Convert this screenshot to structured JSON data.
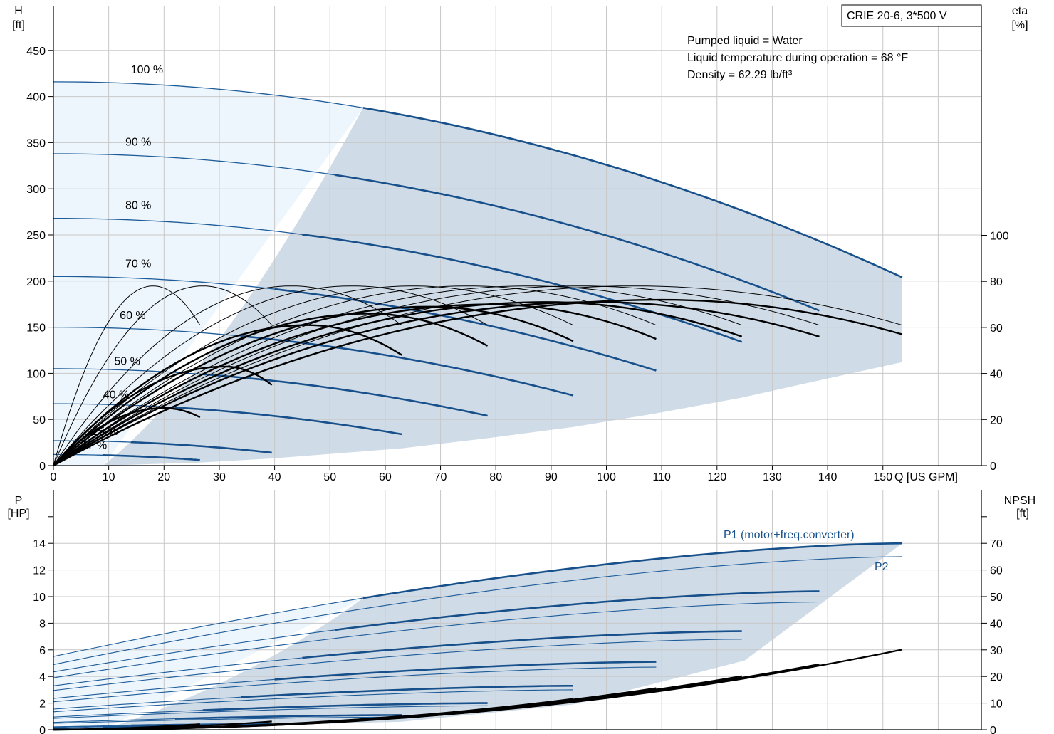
{
  "chart_data": [
    {
      "type": "line",
      "panel": "head-efficiency",
      "title": "CRIE 20-6, 3*500 V",
      "info": [
        "Pumped liquid = Water",
        "Liquid temperature during operation = 68 °F",
        "Density = 62.29 lb/ft³"
      ],
      "ylabel": [
        "H",
        "[ft]"
      ],
      "y2label": [
        "eta",
        "[%]"
      ],
      "xlabel": "Q [US GPM]",
      "xlim": [
        0,
        168
      ],
      "ylim": [
        0,
        500
      ],
      "y2lim": [
        0,
        100
      ],
      "xticks": [
        0,
        10,
        20,
        30,
        40,
        50,
        60,
        70,
        80,
        90,
        100,
        110,
        120,
        130,
        140,
        150
      ],
      "yticks": [
        0,
        50,
        100,
        150,
        200,
        250,
        300,
        350,
        400,
        450
      ],
      "y2ticks": [
        0,
        20,
        40,
        60,
        80,
        100
      ],
      "grid": true,
      "region_colors": {
        "light": "#eef6fd",
        "dark": "#cfdbe7"
      },
      "region_boundary_x": [
        56,
        51,
        40,
        26,
        9
      ],
      "speed_labels": [
        {
          "text": "100 %",
          "q": 14,
          "h": 425
        },
        {
          "text": "90 %",
          "q": 13,
          "h": 347
        },
        {
          "text": "80 %",
          "q": 13,
          "h": 278
        },
        {
          "text": "70 %",
          "q": 13,
          "h": 215
        },
        {
          "text": "60 %",
          "q": 12,
          "h": 159
        },
        {
          "text": "50 %",
          "q": 11,
          "h": 109
        },
        {
          "text": "40 %",
          "q": 9,
          "h": 73
        },
        {
          "text": "25 %",
          "q": 7,
          "h": 33
        },
        {
          "text": "17 %",
          "q": 5,
          "h": 18
        }
      ],
      "head_series": [
        {
          "speed": "100 %",
          "h0": 416,
          "qmax": 153.5,
          "hend": 204,
          "q_start_thick": 56
        },
        {
          "speed": "90 %",
          "h0": 338,
          "qmax": 138.5,
          "hend": 168,
          "q_start_thick": 51
        },
        {
          "speed": "80 %",
          "h0": 268,
          "qmax": 124.5,
          "hend": 134,
          "q_start_thick": 45
        },
        {
          "speed": "70 %",
          "h0": 205,
          "qmax": 109,
          "hend": 103,
          "q_start_thick": 40
        },
        {
          "speed": "60 %",
          "h0": 150,
          "qmax": 94,
          "hend": 76,
          "q_start_thick": 34
        },
        {
          "speed": "50 %",
          "h0": 105,
          "qmax": 78.5,
          "hend": 54,
          "q_start_thick": 27
        },
        {
          "speed": "40 %",
          "h0": 67,
          "qmax": 63,
          "hend": 34,
          "q_start_thick": 22
        },
        {
          "speed": "25 %",
          "h0": 27,
          "qmax": 39.5,
          "hend": 14,
          "q_start_thick": 14
        },
        {
          "speed": "17 %",
          "h0": 12,
          "qmax": 26.5,
          "hend": 6,
          "q_start_thick": 9
        }
      ],
      "eta_curves": [
        {
          "qmax": 26.5,
          "peak_q": 18,
          "peak": 78,
          "end": 61,
          "thick": false
        },
        {
          "qmax": 39.5,
          "peak_q": 27,
          "peak": 78,
          "end": 61,
          "thick": false
        },
        {
          "qmax": 63,
          "peak_q": 43,
          "peak": 78,
          "end": 61,
          "thick": false
        },
        {
          "qmax": 78.5,
          "peak_q": 54,
          "peak": 78,
          "end": 61,
          "thick": false
        },
        {
          "qmax": 94,
          "peak_q": 65,
          "peak": 78,
          "end": 61,
          "thick": false
        },
        {
          "qmax": 109,
          "peak_q": 75,
          "peak": 78,
          "end": 61,
          "thick": false
        },
        {
          "qmax": 124.5,
          "peak_q": 86,
          "peak": 78,
          "end": 61,
          "thick": false
        },
        {
          "qmax": 138.5,
          "peak_q": 95,
          "peak": 78,
          "end": 61,
          "thick": false
        },
        {
          "qmax": 153.5,
          "peak_q": 105,
          "peak": 78,
          "end": 61,
          "thick": false
        },
        {
          "qmax": 26.5,
          "peak_q": 20,
          "peak": 25,
          "end": 21,
          "thick": true
        },
        {
          "qmax": 39.5,
          "peak_q": 31,
          "peak": 43,
          "end": 35,
          "thick": true
        },
        {
          "qmax": 63,
          "peak_q": 46,
          "peak": 61,
          "end": 48,
          "thick": true
        },
        {
          "qmax": 78.5,
          "peak_q": 57,
          "peak": 66,
          "end": 52,
          "thick": true
        },
        {
          "qmax": 94,
          "peak_q": 68,
          "peak": 69,
          "end": 54,
          "thick": true
        },
        {
          "qmax": 109,
          "peak_q": 79,
          "peak": 70,
          "end": 55,
          "thick": true
        },
        {
          "qmax": 124.5,
          "peak_q": 89,
          "peak": 71,
          "end": 56,
          "thick": true
        },
        {
          "qmax": 138.5,
          "peak_q": 98,
          "peak": 71,
          "end": 56,
          "thick": true
        },
        {
          "qmax": 153.5,
          "peak_q": 110,
          "peak": 72,
          "end": 57,
          "thick": true
        }
      ]
    },
    {
      "type": "line",
      "panel": "power-npsh",
      "ylabel": [
        "P",
        "[HP]"
      ],
      "y2label": [
        "NPSH",
        "[ft]"
      ],
      "xlim": [
        0,
        168
      ],
      "ylim": [
        0,
        16
      ],
      "y2lim": [
        0,
        80
      ],
      "yticks": [
        0,
        2,
        4,
        6,
        8,
        10,
        12,
        14
      ],
      "y2ticks": [
        0,
        10,
        20,
        30,
        40,
        50,
        60,
        70
      ],
      "grid": true,
      "region_boundary_x": [
        56,
        51,
        40,
        26,
        9
      ],
      "series_labels": {
        "p1": "P1 (motor+freq.converter)",
        "p2": "P2"
      },
      "power_series": [
        {
          "speed": "100 %",
          "p1_0": 5.5,
          "p1_end": 14.0,
          "p2_0": 4.9,
          "p2_end": 13.0,
          "qmax": 153.5,
          "q_start_thick": 56
        },
        {
          "speed": "90 %",
          "p1_0": 4.35,
          "p1_end": 10.4,
          "p2_0": 3.9,
          "p2_end": 9.6,
          "qmax": 138.5,
          "q_start_thick": 51
        },
        {
          "speed": "80 %",
          "p1_0": 3.3,
          "p1_end": 7.4,
          "p2_0": 2.95,
          "p2_end": 6.8,
          "qmax": 124.5,
          "q_start_thick": 45
        },
        {
          "speed": "70 %",
          "p1_0": 2.35,
          "p1_end": 5.1,
          "p2_0": 2.1,
          "p2_end": 4.7,
          "qmax": 109,
          "q_start_thick": 40
        },
        {
          "speed": "60 %",
          "p1_0": 1.55,
          "p1_end": 3.3,
          "p2_0": 1.35,
          "p2_end": 3.0,
          "qmax": 94,
          "q_start_thick": 34
        },
        {
          "speed": "50 %",
          "p1_0": 0.95,
          "p1_end": 2.0,
          "p2_0": 0.85,
          "p2_end": 1.8,
          "qmax": 78.5,
          "q_start_thick": 27
        },
        {
          "speed": "40 %",
          "p1_0": 0.55,
          "p1_end": 1.1,
          "p2_0": 0.48,
          "p2_end": 0.95,
          "qmax": 63,
          "q_start_thick": 22
        },
        {
          "speed": "25 %",
          "p1_0": 0.22,
          "p1_end": 0.42,
          "p2_0": 0.18,
          "p2_end": 0.36,
          "qmax": 39.5,
          "q_start_thick": 14
        },
        {
          "speed": "17 %",
          "p1_0": 0.12,
          "p1_end": 0.22,
          "p2_0": 0.1,
          "p2_end": 0.18,
          "qmax": 26.5,
          "q_start_thick": 9
        }
      ],
      "npsh_series": [
        {
          "qmax": 26.5,
          "npsh_end": 1.5
        },
        {
          "qmax": 39.5,
          "npsh_end": 2.5
        },
        {
          "qmax": 63,
          "npsh_end": 4.5
        },
        {
          "qmax": 78.5,
          "npsh_end": 6.5
        },
        {
          "qmax": 94,
          "npsh_end": 11
        },
        {
          "qmax": 109,
          "npsh_end": 15
        },
        {
          "qmax": 124.5,
          "npsh_end": 19.5
        },
        {
          "qmax": 138.5,
          "npsh_end": 24
        },
        {
          "qmax": 153.5,
          "npsh_end": 29.5
        }
      ]
    }
  ]
}
